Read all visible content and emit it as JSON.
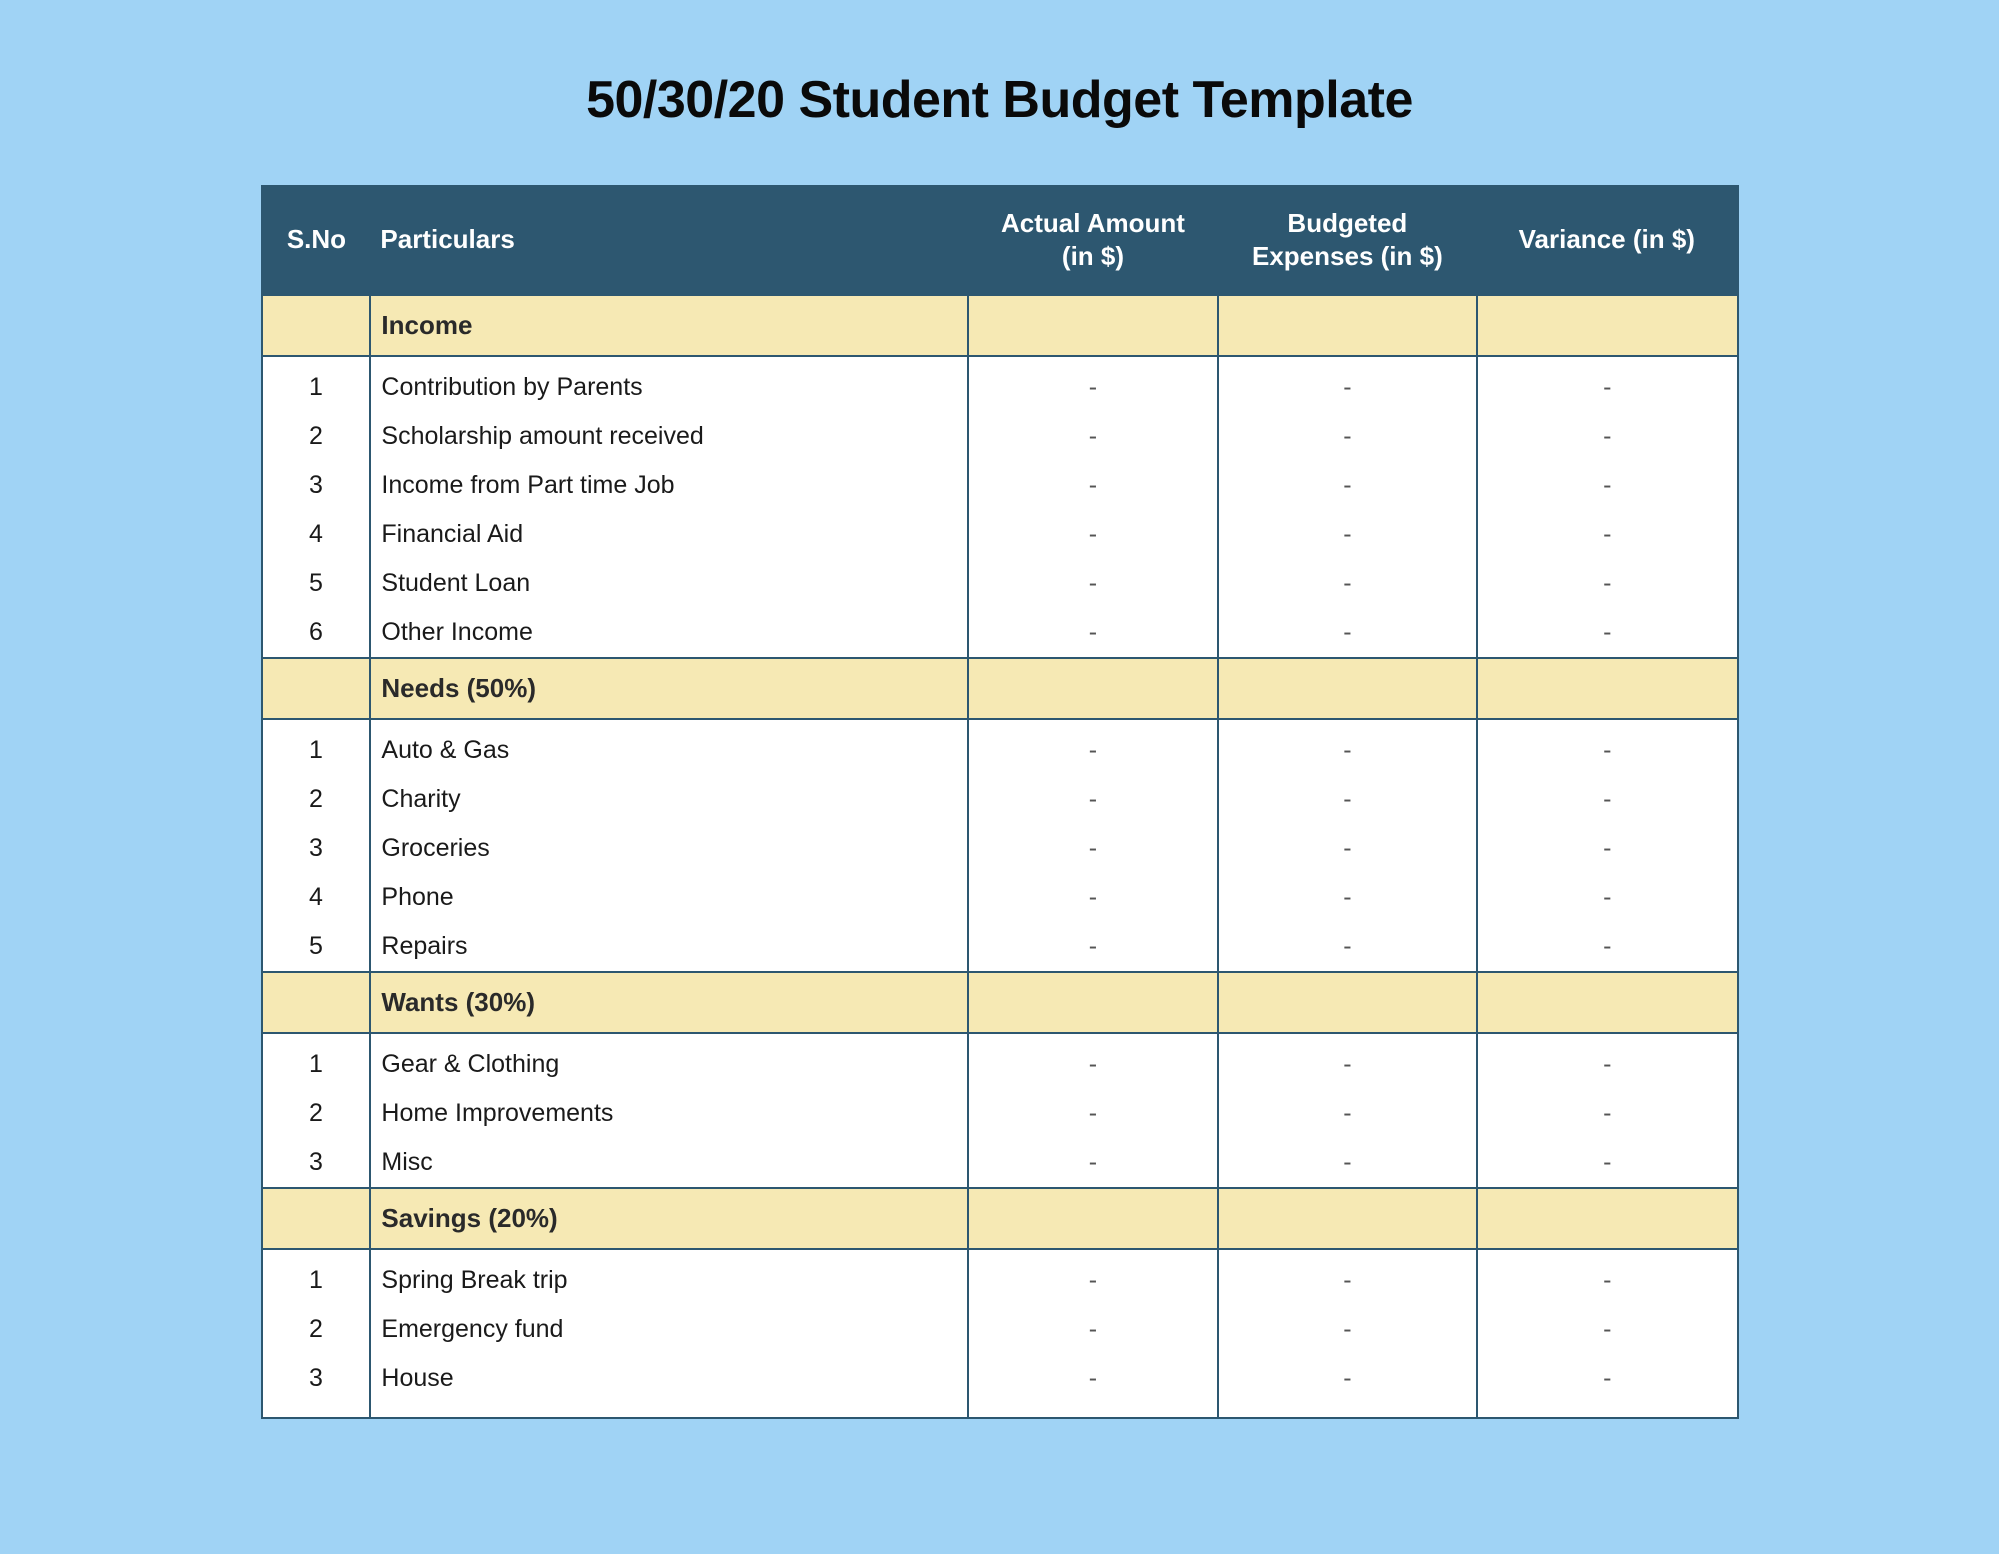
{
  "title": "50/30/20 Student Budget Template",
  "colors": {
    "page_background": "#a0d3f5",
    "header_background": "#2d5770",
    "header_text": "#ffffff",
    "section_background": "#f6e9b4",
    "row_background": "#ffffff",
    "border": "#2d5770",
    "text": "#1a1a1a"
  },
  "columns": {
    "sno": "S.No",
    "particulars": "Particulars",
    "actual": "Actual Amount (in $)",
    "budgeted": "Budgeted Expenses (in $)",
    "variance": "Variance (in $)"
  },
  "sections": [
    {
      "label": "Income",
      "rows": [
        {
          "sno": "1",
          "particulars": "Contribution by Parents",
          "actual": "-",
          "budgeted": "-",
          "variance": "-"
        },
        {
          "sno": "2",
          "particulars": "Scholarship amount received",
          "actual": "-",
          "budgeted": "-",
          "variance": "-"
        },
        {
          "sno": "3",
          "particulars": "Income from Part time Job",
          "actual": "-",
          "budgeted": "-",
          "variance": "-"
        },
        {
          "sno": "4",
          "particulars": "Financial Aid",
          "actual": "-",
          "budgeted": "-",
          "variance": "-"
        },
        {
          "sno": "5",
          "particulars": "Student Loan",
          "actual": "-",
          "budgeted": "-",
          "variance": "-"
        },
        {
          "sno": "6",
          "particulars": "Other Income",
          "actual": "-",
          "budgeted": "-",
          "variance": "-"
        }
      ]
    },
    {
      "label": "Needs (50%)",
      "rows": [
        {
          "sno": "1",
          "particulars": "Auto & Gas",
          "actual": "-",
          "budgeted": "-",
          "variance": "-"
        },
        {
          "sno": "2",
          "particulars": "Charity",
          "actual": "-",
          "budgeted": "-",
          "variance": "-"
        },
        {
          "sno": "3",
          "particulars": "Groceries",
          "actual": "-",
          "budgeted": "-",
          "variance": "-"
        },
        {
          "sno": "4",
          "particulars": "Phone",
          "actual": "-",
          "budgeted": "-",
          "variance": "-"
        },
        {
          "sno": "5",
          "particulars": "Repairs",
          "actual": "-",
          "budgeted": "-",
          "variance": "-"
        }
      ]
    },
    {
      "label": "Wants (30%)",
      "rows": [
        {
          "sno": "1",
          "particulars": "Gear & Clothing",
          "actual": "-",
          "budgeted": "-",
          "variance": "-"
        },
        {
          "sno": "2",
          "particulars": "Home Improvements",
          "actual": "-",
          "budgeted": "-",
          "variance": "-"
        },
        {
          "sno": "3",
          "particulars": "Misc",
          "actual": "-",
          "budgeted": "-",
          "variance": "-"
        }
      ]
    },
    {
      "label": "Savings (20%)",
      "rows": [
        {
          "sno": "1",
          "particulars": "Spring Break trip",
          "actual": "-",
          "budgeted": "-",
          "variance": "-"
        },
        {
          "sno": "2",
          "particulars": "Emergency fund",
          "actual": "-",
          "budgeted": "-",
          "variance": "-"
        },
        {
          "sno": "3",
          "particulars": "House",
          "actual": "-",
          "budgeted": "-",
          "variance": "-"
        }
      ]
    }
  ]
}
